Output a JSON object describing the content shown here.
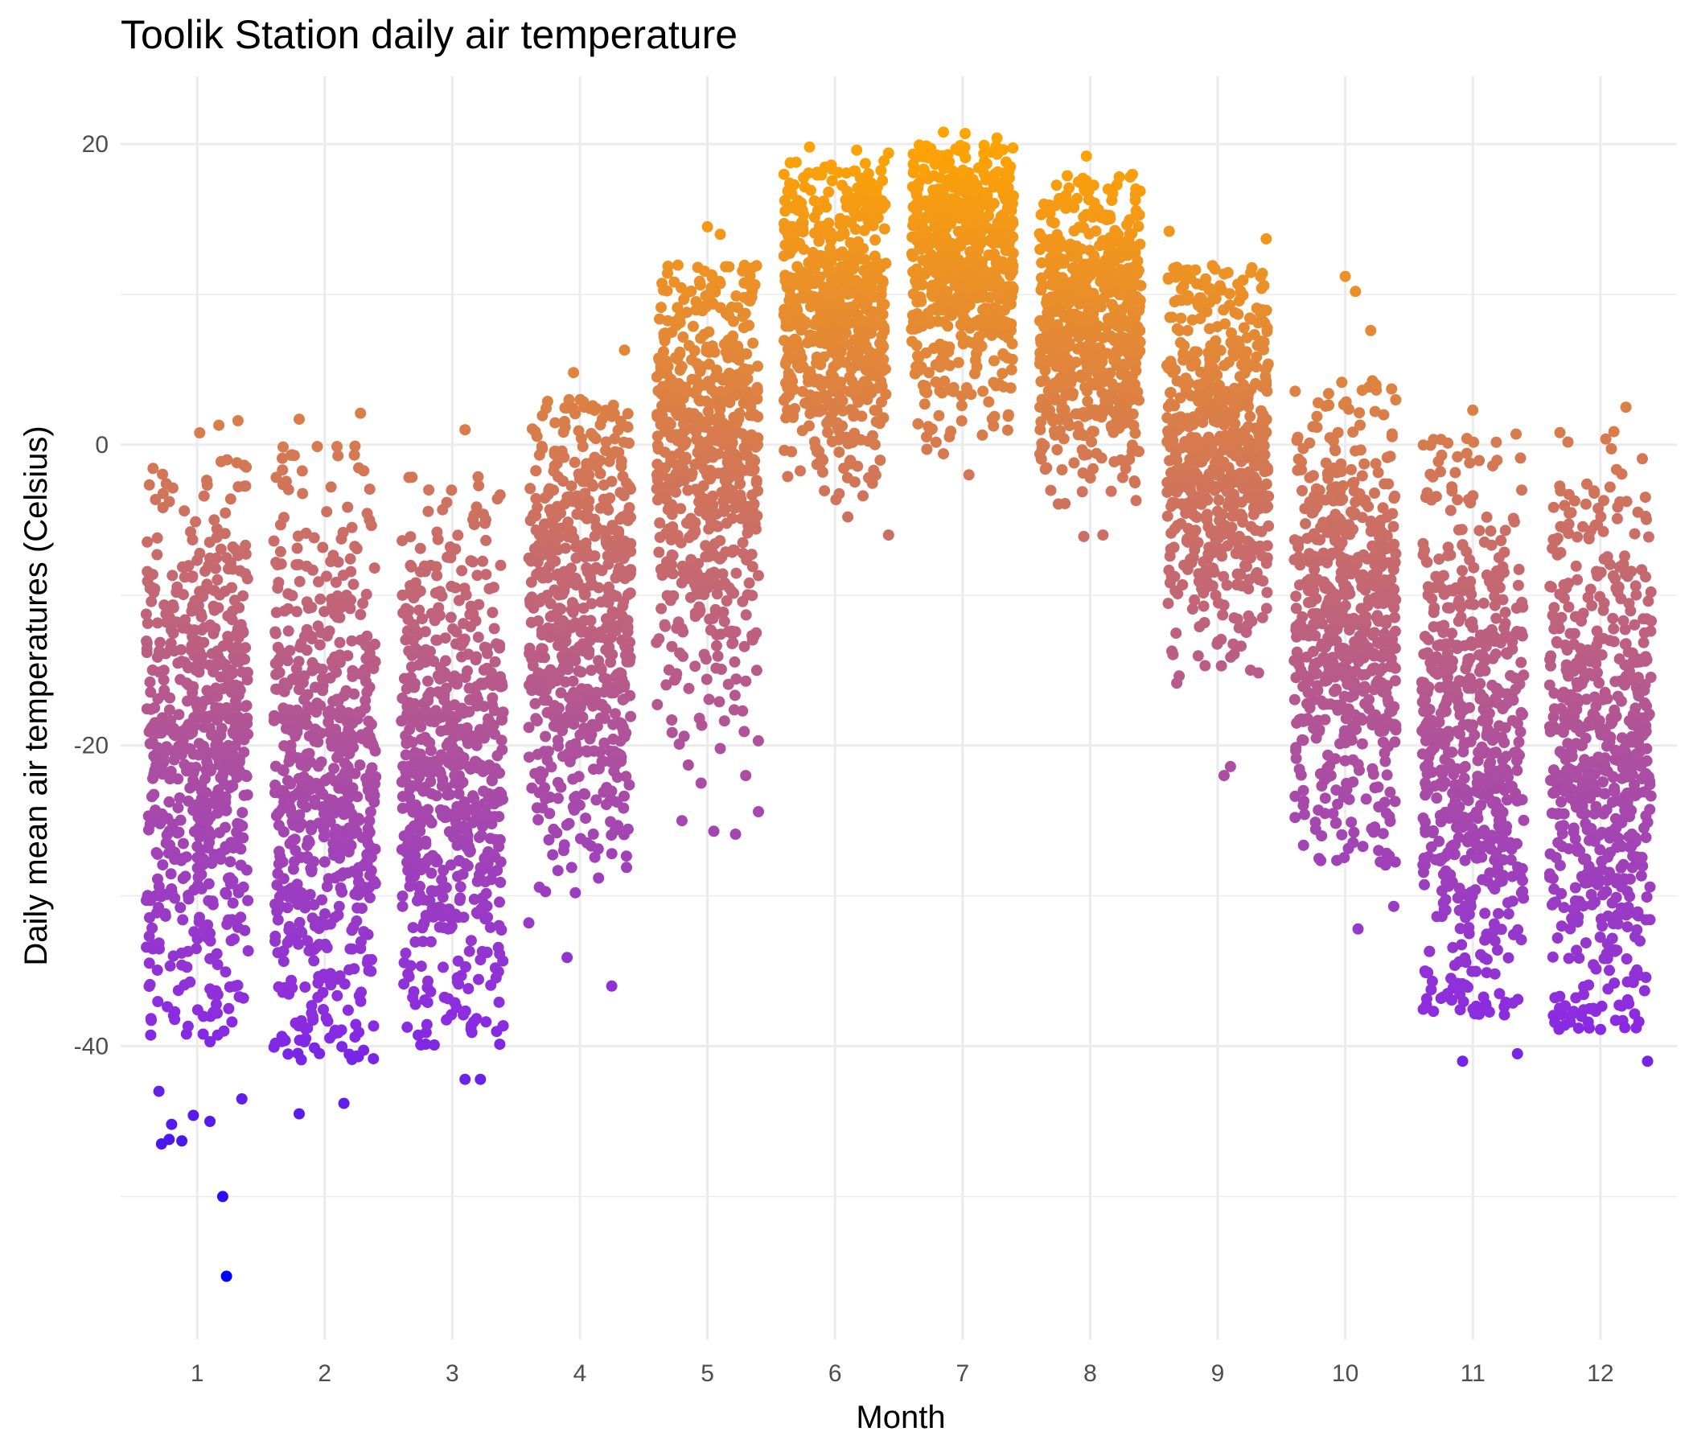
{
  "chart_data": {
    "type": "scatter",
    "title": "Toolik Station daily air temperature",
    "xlabel": "Month",
    "ylabel": "Daily mean air temperatures (Celsius)",
    "x_ticks": [
      "1",
      "2",
      "3",
      "4",
      "5",
      "6",
      "7",
      "8",
      "9",
      "10",
      "11",
      "12"
    ],
    "y_ticks": [
      "-40",
      "-20",
      "0",
      "20"
    ],
    "xlim": [
      0.4,
      12.6
    ],
    "ylim": [
      -59.5,
      24.5
    ],
    "grid": true,
    "jitter_width": 0.4,
    "color_scale": {
      "low_value": -55.3,
      "low": "#0000FF",
      "mid": "#8A2BE2",
      "high": "#FFA500",
      "high_value": 20.8
    },
    "month_ranges": [
      {
        "month": "1",
        "typical_min": -40,
        "typical_max": -1,
        "mean": -20
      },
      {
        "month": "2",
        "typical_min": -41,
        "typical_max": 0,
        "mean": -22
      },
      {
        "month": "3",
        "typical_min": -40,
        "typical_max": -2,
        "mean": -22
      },
      {
        "month": "4",
        "typical_min": -30,
        "typical_max": 3,
        "mean": -12
      },
      {
        "month": "5",
        "typical_min": -20,
        "typical_max": 12,
        "mean": -1
      },
      {
        "month": "6",
        "typical_min": -4,
        "typical_max": 19,
        "mean": 9
      },
      {
        "month": "7",
        "typical_min": 0,
        "typical_max": 20,
        "mean": 12
      },
      {
        "month": "8",
        "typical_min": -4,
        "typical_max": 18,
        "mean": 8
      },
      {
        "month": "9",
        "typical_min": -16,
        "typical_max": 12,
        "mean": 0
      },
      {
        "month": "10",
        "typical_min": -28,
        "typical_max": 5,
        "mean": -12
      },
      {
        "month": "11",
        "typical_min": -38,
        "typical_max": 1,
        "mean": -20
      },
      {
        "month": "12",
        "typical_min": -39,
        "typical_max": 1,
        "mean": -21
      }
    ],
    "outliers": [
      {
        "x": 1.23,
        "y": -55.3
      },
      {
        "x": 1.2,
        "y": -50.0
      },
      {
        "x": 0.72,
        "y": -46.5
      },
      {
        "x": 0.78,
        "y": -46.2
      },
      {
        "x": 0.88,
        "y": -46.3
      },
      {
        "x": 0.8,
        "y": -45.2
      },
      {
        "x": 1.1,
        "y": -45.0
      },
      {
        "x": 1.35,
        "y": -43.5
      },
      {
        "x": 0.7,
        "y": -43.0
      },
      {
        "x": 0.97,
        "y": -44.6
      },
      {
        "x": 1.8,
        "y": -44.5
      },
      {
        "x": 2.15,
        "y": -43.8
      },
      {
        "x": 3.1,
        "y": -42.2
      },
      {
        "x": 3.22,
        "y": -42.2
      },
      {
        "x": 3.6,
        "y": -31.8
      },
      {
        "x": 3.9,
        "y": -34.1
      },
      {
        "x": 4.25,
        "y": -36.0
      },
      {
        "x": 4.8,
        "y": -25.0
      },
      {
        "x": 4.85,
        "y": -21.3
      },
      {
        "x": 4.95,
        "y": -22.5
      },
      {
        "x": 5.05,
        "y": -25.7
      },
      {
        "x": 5.22,
        "y": -25.9
      },
      {
        "x": 5.4,
        "y": -24.4
      },
      {
        "x": 5.3,
        "y": -22.0
      },
      {
        "x": 5.1,
        "y": -20.2
      },
      {
        "x": 6.42,
        "y": -6.0
      },
      {
        "x": 6.1,
        "y": -4.8
      },
      {
        "x": 7.05,
        "y": -2.0
      },
      {
        "x": 6.72,
        "y": -0.3
      },
      {
        "x": 6.85,
        "y": -0.6
      },
      {
        "x": 7.95,
        "y": -6.1
      },
      {
        "x": 8.1,
        "y": -6.0
      },
      {
        "x": 9.05,
        "y": -22.0
      },
      {
        "x": 9.1,
        "y": -21.4
      },
      {
        "x": 10.1,
        "y": -32.2
      },
      {
        "x": 10.38,
        "y": -30.7
      },
      {
        "x": 10.92,
        "y": -41.0
      },
      {
        "x": 11.35,
        "y": -40.5
      },
      {
        "x": 12.37,
        "y": -41.0
      },
      {
        "x": 12.2,
        "y": 2.5
      },
      {
        "x": 11.0,
        "y": 2.3
      },
      {
        "x": 10.0,
        "y": 11.2
      },
      {
        "x": 10.08,
        "y": 10.2
      },
      {
        "x": 10.2,
        "y": 7.6
      },
      {
        "x": 9.38,
        "y": 13.7
      },
      {
        "x": 8.62,
        "y": 14.2
      },
      {
        "x": 4.35,
        "y": 6.3
      },
      {
        "x": 3.95,
        "y": 4.8
      },
      {
        "x": 5.0,
        "y": 14.5
      },
      {
        "x": 5.1,
        "y": 14.0
      },
      {
        "x": 6.85,
        "y": 20.8
      },
      {
        "x": 7.02,
        "y": 20.7
      },
      {
        "x": 7.27,
        "y": 20.4
      },
      {
        "x": 5.8,
        "y": 19.8
      },
      {
        "x": 6.17,
        "y": 19.6
      },
      {
        "x": 6.42,
        "y": 19.4
      },
      {
        "x": 7.97,
        "y": 19.2
      },
      {
        "x": 1.02,
        "y": 0.8
      },
      {
        "x": 1.17,
        "y": 1.3
      },
      {
        "x": 1.32,
        "y": 1.6
      },
      {
        "x": 1.8,
        "y": 1.7
      },
      {
        "x": 2.28,
        "y": 2.1
      },
      {
        "x": 3.1,
        "y": 1.0
      }
    ]
  }
}
